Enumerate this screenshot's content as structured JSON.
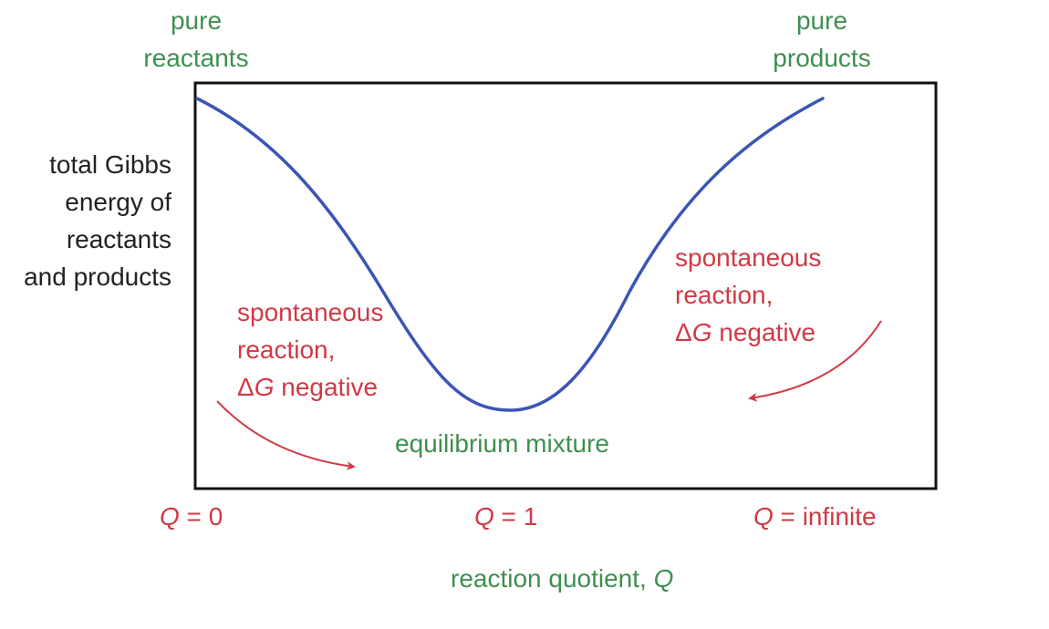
{
  "colors": {
    "curve": "#3a55b5",
    "label_green": "#3f8f4f",
    "label_red": "#cf3a45",
    "axis_text": "#222222",
    "frame": "#111111"
  },
  "top_labels": {
    "left": [
      "pure",
      "reactants"
    ],
    "right": [
      "pure",
      "products"
    ]
  },
  "y_axis_label": [
    "total Gibbs",
    "energy of",
    "reactants",
    "and products"
  ],
  "annotations": {
    "left": {
      "line1": "spontaneous",
      "line2": "reaction,",
      "delta": "Δ",
      "symbol": "G",
      "rest": " negative"
    },
    "right": {
      "line1": "spontaneous",
      "line2": "reaction,",
      "delta": "Δ",
      "symbol": "G",
      "rest": " negative"
    },
    "minimum": "equilibrium mixture"
  },
  "x_ticks": {
    "left": {
      "symbol": "Q",
      "rest": " = 0"
    },
    "middle": {
      "symbol": "Q",
      "rest": " = 1"
    },
    "right": {
      "symbol": "Q",
      "rest": " = infinite"
    }
  },
  "x_axis_label": {
    "text": "reaction quotient, ",
    "symbol": "Q"
  }
}
